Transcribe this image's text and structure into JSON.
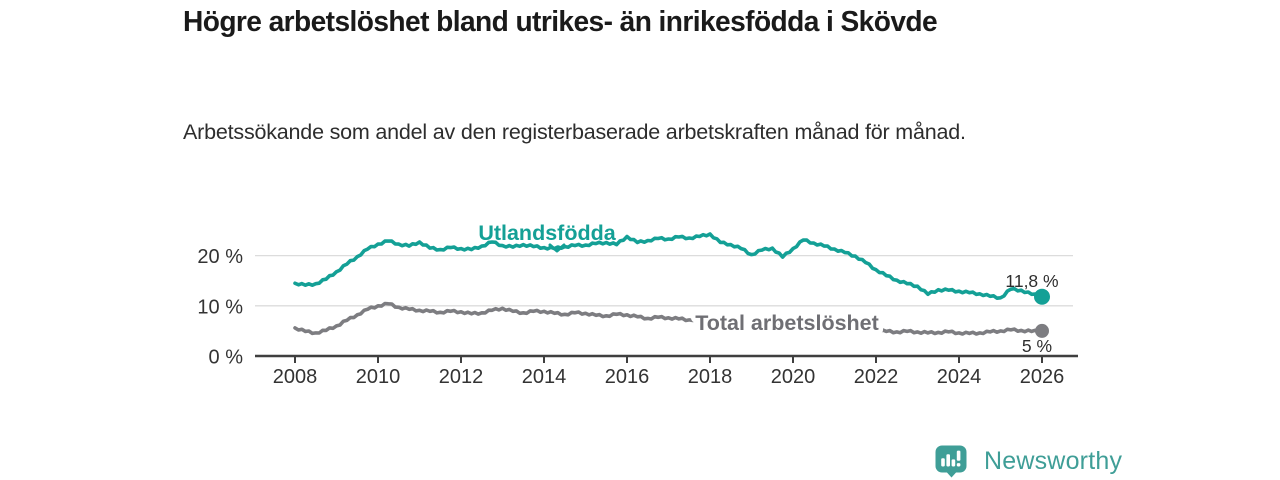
{
  "header": {
    "title": "Högre arbetslöshet bland utrikes- än inrikesfödda i Skövde",
    "subtitle": "Arbetssökande som andel av den registerbaserade arbetskraften månad för månad."
  },
  "chart_data": {
    "type": "line",
    "title": "Högre arbetslöshet bland utrikes- än inrikesfödda i Skövde",
    "subtitle": "Arbetssökande som andel av den registerbaserade arbetskraften månad för månad.",
    "unit": "%",
    "grid": "horizontal",
    "legend_position": "inline-labels",
    "x": [
      2008,
      2008.25,
      2008.5,
      2008.75,
      2009,
      2009.25,
      2009.5,
      2009.75,
      2010,
      2010.25,
      2010.5,
      2010.75,
      2011,
      2011.25,
      2011.5,
      2011.75,
      2012,
      2012.25,
      2012.5,
      2012.75,
      2013,
      2013.25,
      2013.5,
      2013.75,
      2014,
      2014.25,
      2014.5,
      2014.75,
      2015,
      2015.25,
      2015.5,
      2015.75,
      2016,
      2016.25,
      2016.5,
      2016.75,
      2017,
      2017.25,
      2017.5,
      2017.75,
      2018,
      2018.25,
      2018.5,
      2018.75,
      2019,
      2019.25,
      2019.5,
      2019.75,
      2020,
      2020.25,
      2020.5,
      2020.75,
      2021,
      2021.25,
      2021.5,
      2021.75,
      2022,
      2022.25,
      2022.5,
      2022.75,
      2023,
      2023.25,
      2023.5,
      2023.75,
      2024,
      2024.25,
      2024.5,
      2024.75,
      2025,
      2025.25,
      2025.5,
      2025.75,
      2026
    ],
    "series": [
      {
        "name": "Utlandsfödda",
        "color": "#14a096",
        "end_label": "11,8 %",
        "end_value": 11.8,
        "values": [
          14.5,
          14.1,
          14.4,
          15.3,
          16.8,
          18.3,
          19.8,
          21.3,
          22.3,
          22.9,
          22.3,
          21.9,
          22.7,
          21.5,
          21.2,
          21.6,
          21.4,
          21.2,
          21.9,
          22.7,
          22.0,
          21.7,
          22.2,
          21.8,
          21.6,
          21.4,
          21.8,
          22.0,
          22.1,
          22.4,
          22.6,
          22.2,
          23.8,
          22.6,
          23.0,
          23.4,
          23.3,
          23.7,
          23.5,
          23.8,
          24.3,
          22.6,
          22.2,
          21.4,
          20.2,
          21.1,
          21.5,
          19.7,
          21.4,
          23.1,
          22.5,
          21.9,
          21.3,
          20.6,
          19.9,
          18.6,
          17.2,
          16.0,
          15.1,
          14.4,
          13.9,
          12.3,
          13.2,
          13.1,
          12.9,
          12.6,
          12.4,
          11.9,
          11.6,
          13.3,
          13.1,
          12.3,
          11.8
        ]
      },
      {
        "name": "Total arbetslöshet",
        "color": "#7d7d81",
        "end_label": "5 %",
        "end_value": 5.0,
        "values": [
          5.6,
          4.9,
          4.6,
          5.1,
          6.0,
          7.1,
          8.2,
          9.3,
          10.0,
          10.4,
          9.7,
          9.3,
          9.1,
          8.9,
          8.7,
          8.9,
          8.8,
          8.4,
          8.6,
          9.1,
          9.5,
          8.9,
          8.6,
          8.9,
          8.9,
          8.5,
          8.3,
          8.6,
          8.5,
          8.1,
          8.0,
          8.3,
          8.2,
          7.8,
          7.5,
          7.7,
          7.6,
          7.4,
          7.2,
          7.4,
          7.3,
          7.0,
          6.8,
          6.6,
          6.4,
          6.5,
          6.7,
          6.4,
          6.9,
          7.6,
          7.4,
          7.1,
          6.7,
          6.3,
          5.9,
          5.5,
          5.1,
          4.9,
          4.8,
          4.9,
          4.8,
          4.6,
          4.7,
          4.8,
          4.6,
          4.5,
          4.6,
          4.8,
          5.0,
          5.2,
          5.1,
          4.9,
          5.0
        ]
      }
    ],
    "x_axis": {
      "ticks": [
        {
          "value": 2008,
          "label": "2008"
        },
        {
          "value": 2010,
          "label": "2010"
        },
        {
          "value": 2012,
          "label": "2012"
        },
        {
          "value": 2014,
          "label": "2014"
        },
        {
          "value": 2016,
          "label": "2016"
        },
        {
          "value": 2018,
          "label": "2018"
        },
        {
          "value": 2020,
          "label": "2020"
        },
        {
          "value": 2022,
          "label": "2022"
        },
        {
          "value": 2024,
          "label": "2024"
        },
        {
          "value": 2026,
          "label": "2026"
        }
      ],
      "range": [
        2007,
        2027
      ]
    },
    "y_axis": {
      "ticks": [
        {
          "value": 0,
          "label": "0 %"
        },
        {
          "value": 10,
          "label": "10 %"
        },
        {
          "value": 20,
          "label": "20 %"
        }
      ],
      "range": [
        0,
        26
      ]
    },
    "colors": {
      "grid": "#dcdcdc",
      "axis": "#3f3f3f",
      "tick_label": "#333333",
      "annotation": "#2e2e2e"
    }
  },
  "branding": {
    "logo_text": "Newsworthy",
    "logo_color": "#3f9e97",
    "logo_icon": "bar-chart-speech-bubble-icon"
  }
}
